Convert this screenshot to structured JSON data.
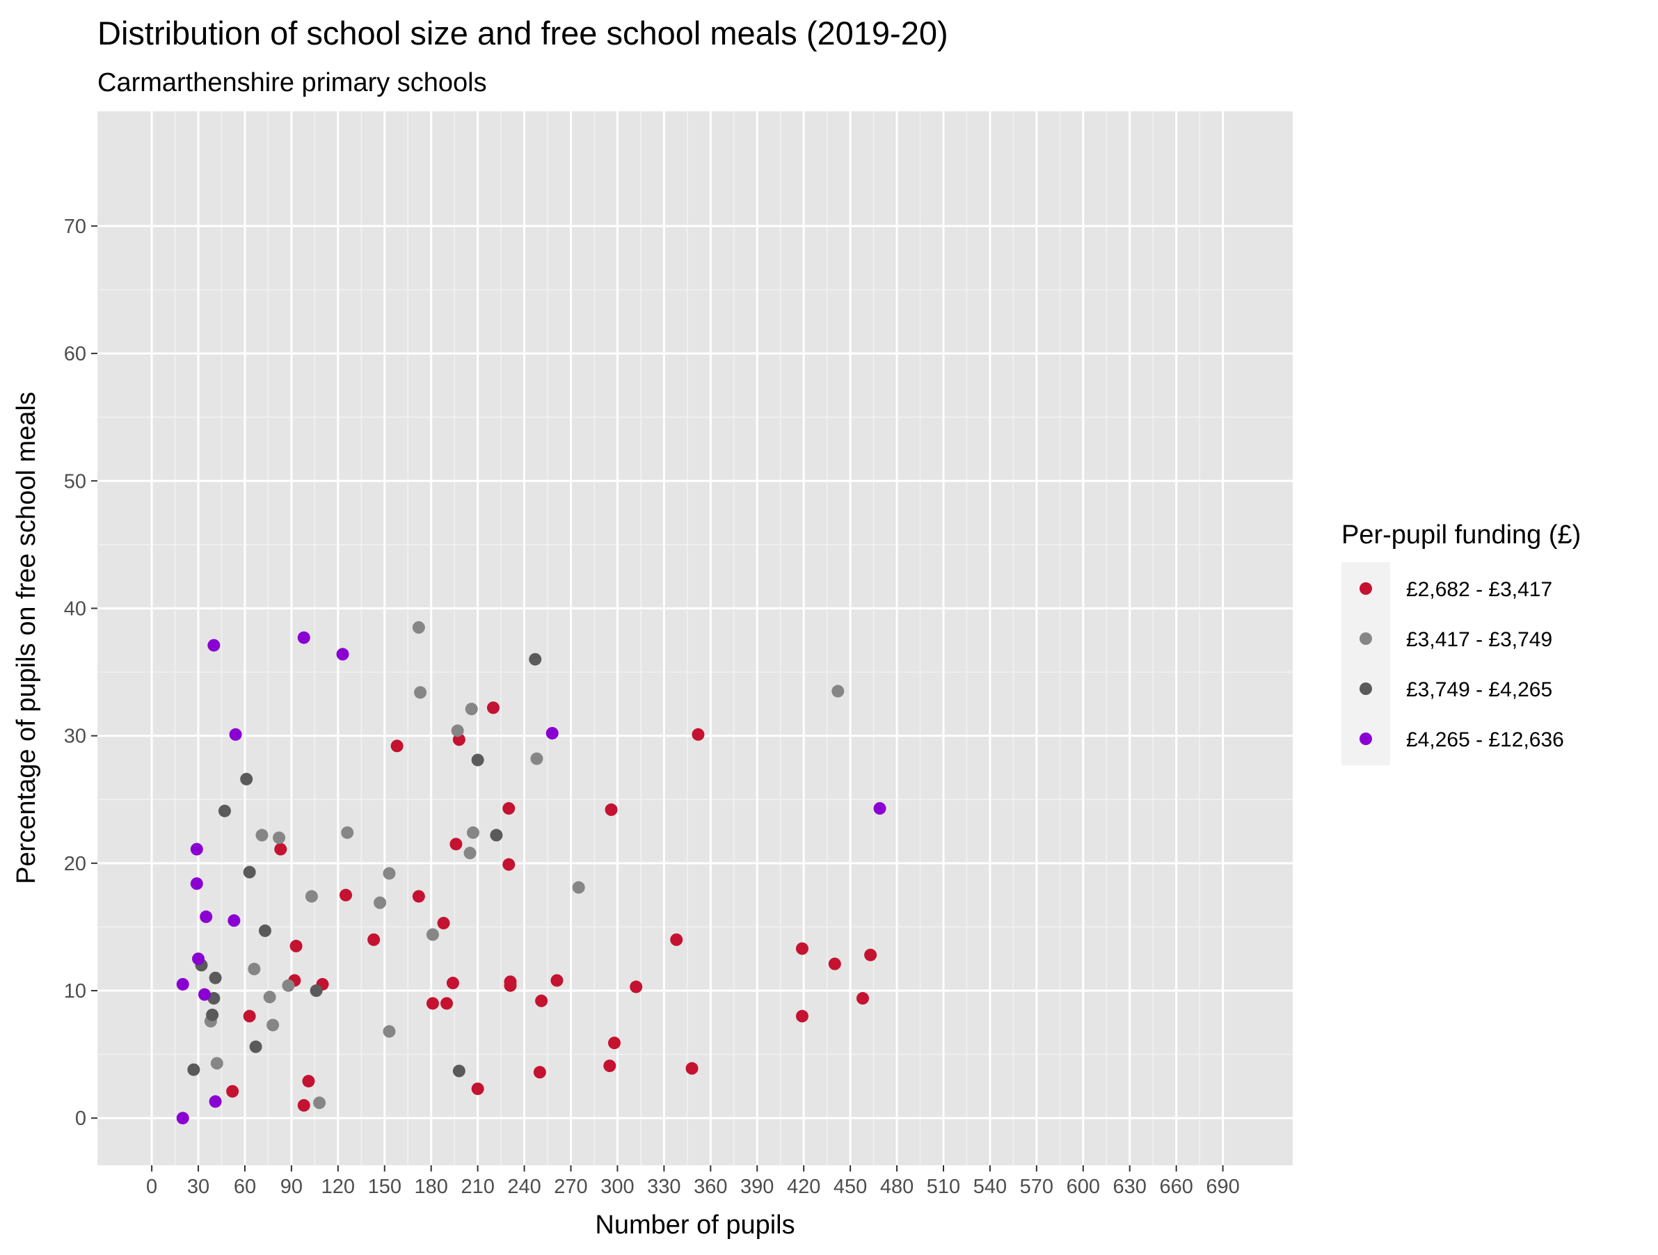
{
  "chart_data": {
    "type": "scatter",
    "title": "Distribution of school size and free school meals (2019-20)",
    "subtitle": "Carmarthenshire primary schools",
    "xlabel": "Number of pupils",
    "ylabel": "Percentage of pupils on free school meals",
    "xlim": [
      -35,
      735
    ],
    "ylim": [
      -3.7,
      79
    ],
    "x_ticks": [
      0,
      30,
      60,
      90,
      120,
      150,
      180,
      210,
      240,
      270,
      300,
      330,
      360,
      390,
      420,
      450,
      480,
      510,
      540,
      570,
      600,
      630,
      660,
      690
    ],
    "x_tick_labels": [
      "0",
      "30",
      "60",
      "90",
      "120",
      "150",
      "180",
      "210",
      "240",
      "270",
      "300",
      "330",
      "360",
      "390",
      "420",
      "450",
      "480",
      "510",
      "540",
      "570",
      "600",
      "630",
      "660",
      "690"
    ],
    "y_ticks": [
      0,
      10,
      20,
      30,
      40,
      50,
      60,
      70
    ],
    "y_tick_labels": [
      "0",
      "10",
      "20",
      "30",
      "40",
      "50",
      "60",
      "70"
    ],
    "grid": true,
    "legend": {
      "title": "Per-pupil funding (£)",
      "position": "right"
    },
    "series": [
      {
        "name": "£2,682 - £3,417",
        "color": "#c41230",
        "points": [
          [
            52,
            2.1
          ],
          [
            63,
            8.0
          ],
          [
            83,
            21.1
          ],
          [
            92,
            10.8
          ],
          [
            93,
            13.5
          ],
          [
            98,
            1.0
          ],
          [
            101,
            2.9
          ],
          [
            110,
            10.5
          ],
          [
            125,
            17.5
          ],
          [
            143,
            14.0
          ],
          [
            158,
            29.2
          ],
          [
            172,
            17.4
          ],
          [
            181,
            9.0
          ],
          [
            188,
            15.3
          ],
          [
            190,
            9.0
          ],
          [
            194,
            10.6
          ],
          [
            196,
            21.5
          ],
          [
            198,
            29.7
          ],
          [
            210,
            2.3
          ],
          [
            220,
            32.2
          ],
          [
            230,
            24.3
          ],
          [
            230,
            19.9
          ],
          [
            231,
            10.7
          ],
          [
            231,
            10.4
          ],
          [
            250,
            3.6
          ],
          [
            251,
            9.2
          ],
          [
            261,
            10.8
          ],
          [
            295,
            4.1
          ],
          [
            296,
            24.2
          ],
          [
            298,
            5.9
          ],
          [
            312,
            10.3
          ],
          [
            338,
            14.0
          ],
          [
            348,
            3.9
          ],
          [
            352,
            30.1
          ],
          [
            419,
            13.3
          ],
          [
            419,
            8.0
          ],
          [
            440,
            12.1
          ],
          [
            458,
            9.4
          ],
          [
            463,
            12.8
          ]
        ]
      },
      {
        "name": "£3,417 - £3,749",
        "color": "#868686",
        "points": [
          [
            38,
            7.6
          ],
          [
            42,
            4.3
          ],
          [
            66,
            11.7
          ],
          [
            71,
            22.2
          ],
          [
            76,
            9.5
          ],
          [
            78,
            7.3
          ],
          [
            82,
            22.0
          ],
          [
            88,
            10.4
          ],
          [
            103,
            17.4
          ],
          [
            108,
            1.2
          ],
          [
            126,
            22.4
          ],
          [
            147,
            16.9
          ],
          [
            153,
            19.2
          ],
          [
            153,
            6.8
          ],
          [
            172,
            38.5
          ],
          [
            173,
            33.4
          ],
          [
            181,
            14.4
          ],
          [
            197,
            30.4
          ],
          [
            205,
            20.8
          ],
          [
            206,
            32.1
          ],
          [
            207,
            22.4
          ],
          [
            248,
            28.2
          ],
          [
            275,
            18.1
          ],
          [
            442,
            33.5
          ]
        ]
      },
      {
        "name": "£3,749 - £4,265",
        "color": "#5a5a5a",
        "points": [
          [
            27,
            3.8
          ],
          [
            32,
            12.0
          ],
          [
            39,
            8.1
          ],
          [
            40,
            9.4
          ],
          [
            41,
            11.0
          ],
          [
            47,
            24.1
          ],
          [
            61,
            26.6
          ],
          [
            63,
            19.3
          ],
          [
            67,
            5.6
          ],
          [
            73,
            14.7
          ],
          [
            106,
            10.0
          ],
          [
            198,
            3.7
          ],
          [
            210,
            28.1
          ],
          [
            222,
            22.2
          ],
          [
            247,
            36.0
          ]
        ]
      },
      {
        "name": "£4,265 - £12,636",
        "color": "#8a00d2",
        "points": [
          [
            20,
            0.0
          ],
          [
            20,
            10.5
          ],
          [
            29,
            21.1
          ],
          [
            29,
            18.4
          ],
          [
            30,
            12.5
          ],
          [
            34,
            9.7
          ],
          [
            35,
            15.8
          ],
          [
            40,
            37.1
          ],
          [
            41,
            1.3
          ],
          [
            53,
            15.5
          ],
          [
            54,
            30.1
          ],
          [
            98,
            37.7
          ],
          [
            123,
            36.4
          ],
          [
            258,
            30.2
          ],
          [
            469,
            24.3
          ]
        ]
      }
    ]
  }
}
